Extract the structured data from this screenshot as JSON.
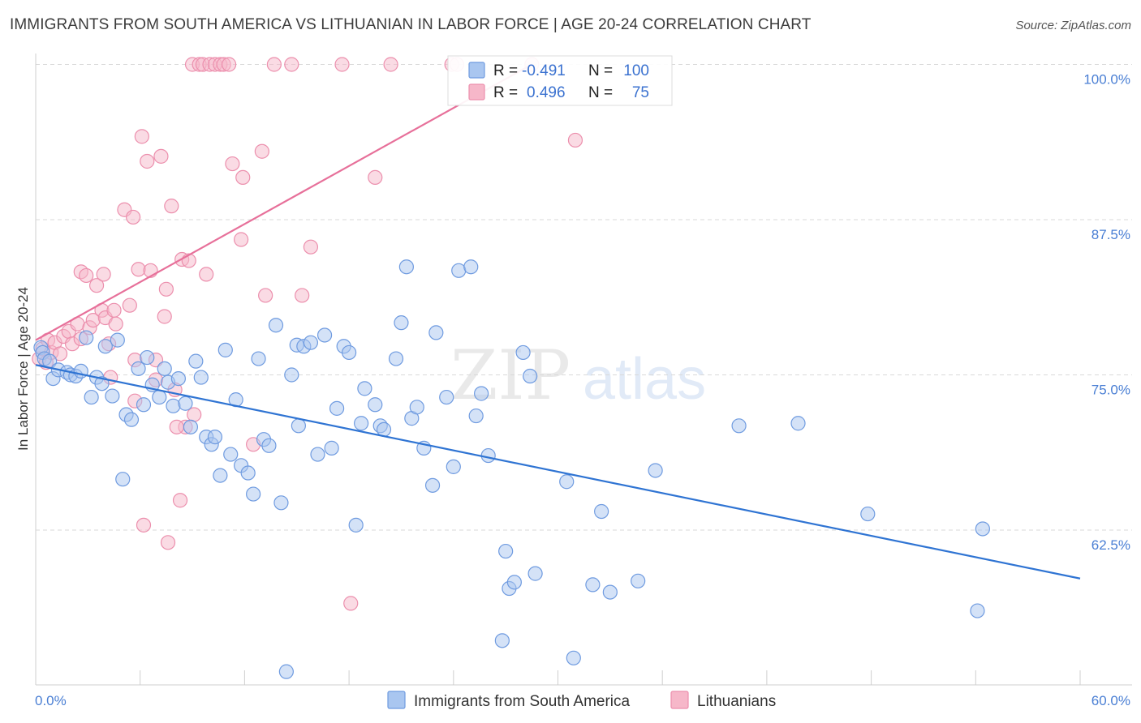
{
  "title": "IMMIGRANTS FROM SOUTH AMERICA VS LITHUANIAN IN LABOR FORCE | AGE 20-24 CORRELATION CHART",
  "source": "Source: ZipAtlas.com",
  "watermark": {
    "zip": "ZIP",
    "atlas": "atlas"
  },
  "colors": {
    "blue_fill": "#a9c6f0",
    "blue_stroke": "#6f9be0",
    "blue_line": "#2f74d3",
    "pink_fill": "#f6b7c9",
    "pink_stroke": "#ec8fad",
    "pink_line": "#e7709a",
    "tick_label": "#4a7fd4"
  },
  "stats_legend": {
    "rows": [
      {
        "r_label": "R =",
        "r_value": "-0.491",
        "n_label": "N =",
        "n_value": "100"
      },
      {
        "r_label": "R =",
        "r_value": "0.496",
        "n_label": "N =",
        "n_value": "75"
      }
    ]
  },
  "chart_data": {
    "type": "scatter",
    "title": "IMMIGRANTS FROM SOUTH AMERICA VS LITHUANIAN IN LABOR FORCE | AGE 20-24 CORRELATION CHART",
    "xlabel": "",
    "ylabel": "In Labor Force | Age 20-24",
    "xlim": [
      0,
      60
    ],
    "ylim": [
      51.5,
      101
    ],
    "x_tick_labels": {
      "min": "0.0%",
      "max": "60.0%"
    },
    "y_ticks": [
      62.5,
      75.0,
      87.5,
      100.0
    ],
    "y_tick_labels": [
      "62.5%",
      "75.0%",
      "87.5%",
      "100.0%"
    ],
    "grid": true,
    "legend_position": "bottom-center",
    "series": [
      {
        "name": "Immigrants from South America",
        "color": "blue",
        "r": -0.491,
        "n": 100,
        "trend": {
          "x": [
            0,
            60
          ],
          "y": [
            75.8,
            58.6
          ]
        },
        "points": [
          [
            0.3,
            77.2
          ],
          [
            0.4,
            76.8
          ],
          [
            0.5,
            76.3
          ],
          [
            0.8,
            76.1
          ],
          [
            1.0,
            74.7
          ],
          [
            1.3,
            75.4
          ],
          [
            1.8,
            75.2
          ],
          [
            2.0,
            75.0
          ],
          [
            2.3,
            74.9
          ],
          [
            2.6,
            75.3
          ],
          [
            2.9,
            78.0
          ],
          [
            3.2,
            73.2
          ],
          [
            3.5,
            74.8
          ],
          [
            3.8,
            74.3
          ],
          [
            4.0,
            77.3
          ],
          [
            4.4,
            73.3
          ],
          [
            4.7,
            77.8
          ],
          [
            5.0,
            66.6
          ],
          [
            5.2,
            71.8
          ],
          [
            5.5,
            71.4
          ],
          [
            5.9,
            75.5
          ],
          [
            6.2,
            72.6
          ],
          [
            6.4,
            76.4
          ],
          [
            6.7,
            74.2
          ],
          [
            7.1,
            73.2
          ],
          [
            7.4,
            75.5
          ],
          [
            7.6,
            74.4
          ],
          [
            7.9,
            72.5
          ],
          [
            8.2,
            74.7
          ],
          [
            8.6,
            72.7
          ],
          [
            8.9,
            70.8
          ],
          [
            9.2,
            76.1
          ],
          [
            9.5,
            74.8
          ],
          [
            9.8,
            70.0
          ],
          [
            10.1,
            69.4
          ],
          [
            10.3,
            70.0
          ],
          [
            10.6,
            66.9
          ],
          [
            10.9,
            77.0
          ],
          [
            11.2,
            68.6
          ],
          [
            11.5,
            73.0
          ],
          [
            11.8,
            67.7
          ],
          [
            12.2,
            67.1
          ],
          [
            12.5,
            65.4
          ],
          [
            12.8,
            76.3
          ],
          [
            13.1,
            69.8
          ],
          [
            13.4,
            69.3
          ],
          [
            13.8,
            79.0
          ],
          [
            14.1,
            64.7
          ],
          [
            14.4,
            51.1
          ],
          [
            14.7,
            75.0
          ],
          [
            15.0,
            77.4
          ],
          [
            15.1,
            70.9
          ],
          [
            15.4,
            77.3
          ],
          [
            15.8,
            77.6
          ],
          [
            16.2,
            68.6
          ],
          [
            16.6,
            78.2
          ],
          [
            17.0,
            69.1
          ],
          [
            17.3,
            72.3
          ],
          [
            17.7,
            77.3
          ],
          [
            18.0,
            76.8
          ],
          [
            18.4,
            62.9
          ],
          [
            18.7,
            71.1
          ],
          [
            18.9,
            73.9
          ],
          [
            19.5,
            72.6
          ],
          [
            19.8,
            70.9
          ],
          [
            20.0,
            70.6
          ],
          [
            20.7,
            76.3
          ],
          [
            21.0,
            79.2
          ],
          [
            21.3,
            83.7
          ],
          [
            21.6,
            71.5
          ],
          [
            21.9,
            72.4
          ],
          [
            22.3,
            69.1
          ],
          [
            22.8,
            66.1
          ],
          [
            23.0,
            78.4
          ],
          [
            23.6,
            73.2
          ],
          [
            24.0,
            67.6
          ],
          [
            24.3,
            83.4
          ],
          [
            25.0,
            83.7
          ],
          [
            25.3,
            71.7
          ],
          [
            25.6,
            73.5
          ],
          [
            26.0,
            68.5
          ],
          [
            26.8,
            53.6
          ],
          [
            27.0,
            60.8
          ],
          [
            27.2,
            57.8
          ],
          [
            27.5,
            58.3
          ],
          [
            28.0,
            76.8
          ],
          [
            28.4,
            74.9
          ],
          [
            28.7,
            59.0
          ],
          [
            30.5,
            66.4
          ],
          [
            30.9,
            52.2
          ],
          [
            32.0,
            58.1
          ],
          [
            32.5,
            64.0
          ],
          [
            33.0,
            57.5
          ],
          [
            34.6,
            58.4
          ],
          [
            35.6,
            67.3
          ],
          [
            40.4,
            70.9
          ],
          [
            43.8,
            71.1
          ],
          [
            47.8,
            63.8
          ],
          [
            54.4,
            62.6
          ],
          [
            54.1,
            56.0
          ]
        ]
      },
      {
        "name": "Lithuanians",
        "color": "pink",
        "r": 0.496,
        "n": 75,
        "trend": {
          "x": [
            0,
            28.5
          ],
          "y": [
            77.8,
            100.0
          ]
        },
        "points": [
          [
            0.2,
            76.3
          ],
          [
            0.4,
            77.1
          ],
          [
            0.6,
            76.0
          ],
          [
            0.7,
            77.8
          ],
          [
            0.9,
            76.8
          ],
          [
            1.1,
            77.6
          ],
          [
            1.4,
            76.7
          ],
          [
            1.6,
            78.1
          ],
          [
            1.9,
            78.5
          ],
          [
            2.1,
            77.5
          ],
          [
            2.4,
            79.1
          ],
          [
            2.6,
            77.9
          ],
          [
            2.6,
            83.3
          ],
          [
            2.9,
            83.0
          ],
          [
            3.1,
            78.8
          ],
          [
            3.3,
            79.4
          ],
          [
            3.5,
            82.2
          ],
          [
            3.8,
            80.2
          ],
          [
            3.9,
            83.1
          ],
          [
            4.0,
            79.6
          ],
          [
            4.3,
            74.8
          ],
          [
            4.5,
            80.2
          ],
          [
            4.6,
            79.1
          ],
          [
            5.1,
            88.3
          ],
          [
            5.4,
            80.6
          ],
          [
            5.6,
            87.7
          ],
          [
            5.7,
            72.9
          ],
          [
            5.9,
            83.5
          ],
          [
            6.1,
            94.2
          ],
          [
            6.2,
            62.9
          ],
          [
            6.4,
            92.2
          ],
          [
            6.6,
            83.4
          ],
          [
            6.9,
            76.2
          ],
          [
            6.9,
            74.6
          ],
          [
            7.2,
            92.6
          ],
          [
            7.4,
            79.7
          ],
          [
            7.5,
            81.9
          ],
          [
            7.8,
            88.6
          ],
          [
            8.0,
            73.8
          ],
          [
            8.3,
            64.9
          ],
          [
            8.4,
            84.3
          ],
          [
            8.6,
            70.8
          ],
          [
            8.8,
            84.2
          ],
          [
            9.0,
            100.0
          ],
          [
            9.1,
            71.8
          ],
          [
            9.4,
            100.0
          ],
          [
            9.6,
            100.0
          ],
          [
            9.8,
            83.1
          ],
          [
            10.0,
            100.0
          ],
          [
            10.3,
            100.0
          ],
          [
            10.6,
            100.0
          ],
          [
            10.8,
            100.0
          ],
          [
            11.1,
            100.0
          ],
          [
            11.3,
            92.0
          ],
          [
            11.8,
            85.9
          ],
          [
            11.9,
            90.9
          ],
          [
            12.5,
            69.4
          ],
          [
            13.0,
            93.0
          ],
          [
            13.2,
            81.4
          ],
          [
            13.7,
            100.0
          ],
          [
            14.7,
            100.0
          ],
          [
            15.3,
            81.4
          ],
          [
            15.8,
            85.3
          ],
          [
            17.6,
            100.0
          ],
          [
            18.1,
            56.6
          ],
          [
            19.5,
            90.9
          ],
          [
            20.4,
            100.0
          ],
          [
            23.9,
            100.0
          ],
          [
            24.2,
            100.0
          ],
          [
            28.5,
            100.0
          ],
          [
            31.0,
            93.9
          ],
          [
            7.6,
            61.5
          ],
          [
            5.7,
            76.2
          ],
          [
            4.2,
            77.5
          ],
          [
            8.1,
            70.8
          ]
        ]
      }
    ]
  },
  "bottom_legend": {
    "items": [
      {
        "label": "Immigrants from South America"
      },
      {
        "label": "Lithuanians"
      }
    ]
  }
}
